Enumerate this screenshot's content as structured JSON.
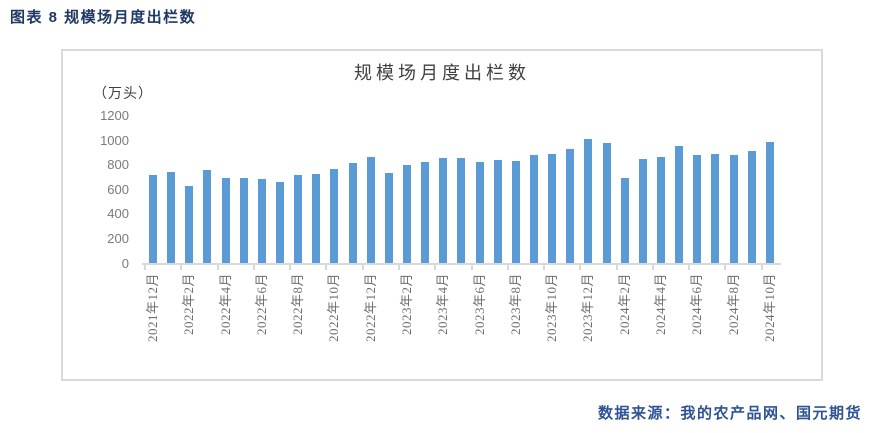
{
  "header": {
    "caption": "图表 8 规模场月度出栏数"
  },
  "footer": {
    "source": "数据来源：我的农产品网、国元期货"
  },
  "colors": {
    "bar": "#5B9BD5",
    "frame_border": "#D9D9D9",
    "caption_text": "#1F3864",
    "source_text": "#2E5395",
    "axis_text": "#7a7a7a",
    "title_text": "#404040"
  },
  "chart_data": {
    "type": "bar",
    "title": "规模场月度出栏数",
    "unit_label": "（万头）",
    "ylabel": "万头",
    "xlabel": "",
    "ylim": [
      0,
      1200
    ],
    "y_ticks": [
      0,
      200,
      400,
      600,
      800,
      1000,
      1200
    ],
    "grid": false,
    "legend": false,
    "x_tick_label_step": 2,
    "categories": [
      "2021年12月",
      "2022年1月",
      "2022年2月",
      "2022年3月",
      "2022年4月",
      "2022年5月",
      "2022年6月",
      "2022年7月",
      "2022年8月",
      "2022年9月",
      "2022年10月",
      "2022年11月",
      "2022年12月",
      "2023年1月",
      "2023年2月",
      "2023年3月",
      "2023年4月",
      "2023年5月",
      "2023年6月",
      "2023年7月",
      "2023年8月",
      "2023年9月",
      "2023年10月",
      "2023年11月",
      "2023年12月",
      "2024年1月",
      "2024年2月",
      "2024年3月",
      "2024年4月",
      "2024年5月",
      "2024年6月",
      "2024年7月",
      "2024年8月",
      "2024年9月",
      "2024年10月"
    ],
    "values": [
      720,
      738,
      630,
      760,
      688,
      690,
      682,
      658,
      718,
      722,
      768,
      815,
      865,
      730,
      795,
      825,
      858,
      855,
      818,
      836,
      826,
      876,
      888,
      930,
      1005,
      975,
      695,
      850,
      865,
      950,
      877,
      888,
      877,
      910,
      982
    ],
    "visible_x_tick_labels": [
      "2021年12月",
      "2022年2月",
      "2022年4月",
      "2022年6月",
      "2022年8月",
      "2022年10月",
      "2022年12月",
      "2023年2月",
      "2023年4月",
      "2023年6月",
      "2023年8月",
      "2023年10月",
      "2023年12月",
      "2024年2月",
      "2024年4月",
      "2024年6月",
      "2024年8月",
      "2024年10月"
    ]
  }
}
